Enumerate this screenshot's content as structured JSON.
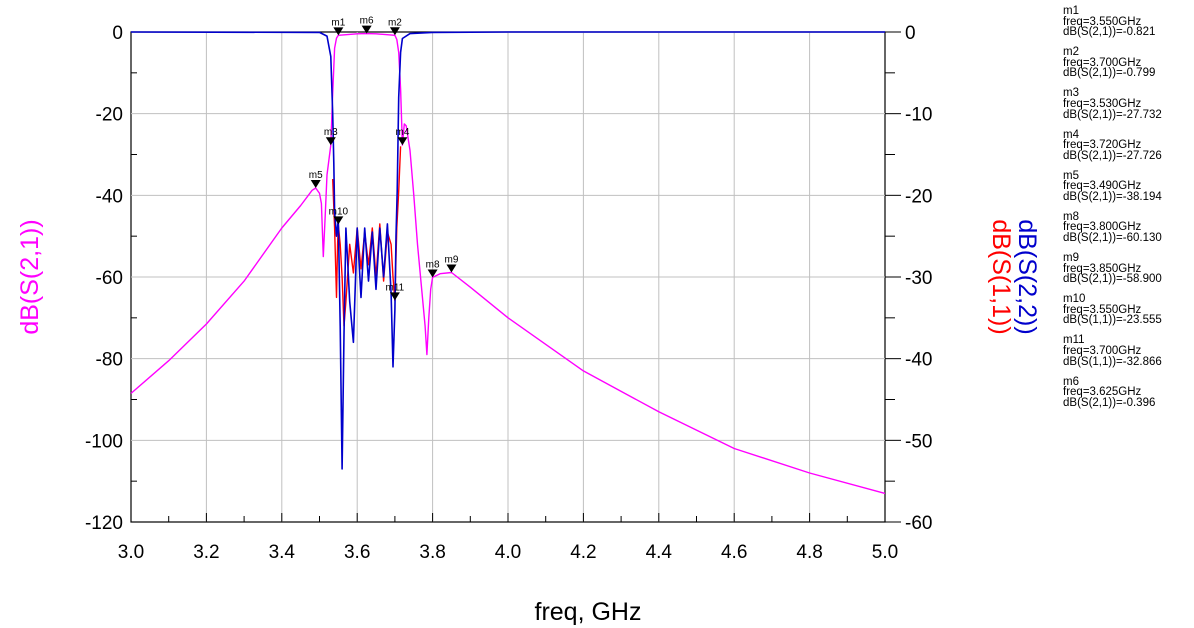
{
  "chart_data": {
    "type": "line",
    "xlabel": "freq, GHz",
    "ylabel_left": "dB(S(2,1))",
    "ylabel_right_top": "dB(S(2,2))",
    "ylabel_right_bottom": "dB(S(1,1))",
    "xlim": [
      3.0,
      5.0
    ],
    "ylim_left": [
      -120,
      0
    ],
    "ylim_right": [
      -60,
      0
    ],
    "x_ticks": [
      "3.0",
      "3.2",
      "3.4",
      "3.6",
      "3.8",
      "4.0",
      "4.2",
      "4.4",
      "4.6",
      "4.8",
      "5.0"
    ],
    "y_left_ticks": [
      "0",
      "-20",
      "-40",
      "-60",
      "-80",
      "-100",
      "-120"
    ],
    "y_right_ticks": [
      "0",
      "-10",
      "-20",
      "-30",
      "-40",
      "-50",
      "-60"
    ],
    "grid": true,
    "colors": {
      "s21": "#ff00ff",
      "s11": "#ff0000",
      "s22": "#0000cc"
    },
    "series": [
      {
        "key": "s21",
        "axis": "left",
        "x": [
          3.0,
          3.1,
          3.2,
          3.3,
          3.4,
          3.45,
          3.48,
          3.49,
          3.5,
          3.505,
          3.51,
          3.515,
          3.52,
          3.53,
          3.535,
          3.54,
          3.545,
          3.55,
          3.6,
          3.625,
          3.65,
          3.7,
          3.705,
          3.71,
          3.715,
          3.72,
          3.725,
          3.73,
          3.74,
          3.75,
          3.76,
          3.77,
          3.78,
          3.785,
          3.79,
          3.795,
          3.8,
          3.82,
          3.85,
          3.9,
          4.0,
          4.2,
          4.4,
          4.6,
          4.8,
          5.0
        ],
        "y": [
          -88.5,
          -80.5,
          -71.5,
          -61,
          -48,
          -42.5,
          -38.8,
          -38.2,
          -39.5,
          -42,
          -55,
          -45,
          -35,
          -27.7,
          -15,
          -4,
          -1.5,
          -0.8,
          -0.45,
          -0.4,
          -0.45,
          -0.8,
          -1.8,
          -5,
          -14,
          -27.7,
          -22.5,
          -23,
          -29,
          -40,
          -52,
          -62,
          -72,
          -79,
          -70,
          -63,
          -60.1,
          -59.2,
          -58.9,
          -62.5,
          -70,
          -83,
          -93,
          -102,
          -108,
          -113
        ]
      },
      {
        "key": "s11",
        "axis": "right",
        "x": [
          3.535,
          3.54,
          3.545,
          3.548,
          3.55,
          3.555,
          3.56,
          3.565,
          3.57,
          3.58,
          3.59,
          3.6,
          3.61,
          3.62,
          3.63,
          3.64,
          3.65,
          3.66,
          3.67,
          3.68,
          3.69,
          3.695,
          3.7,
          3.705,
          3.71,
          3.715
        ],
        "y": [
          -18,
          -24,
          -32.5,
          -26,
          -23.6,
          -26,
          -30,
          -36,
          -33,
          -26,
          -29.5,
          -24,
          -29,
          -24.5,
          -28.5,
          -24,
          -30,
          -23.5,
          -30.5,
          -24.5,
          -26,
          -30,
          -32.9,
          -24,
          -19.5,
          -14
        ]
      },
      {
        "key": "s22",
        "axis": "right",
        "x": [
          3.0,
          3.5,
          3.52,
          3.53,
          3.535,
          3.538,
          3.54,
          3.545,
          3.55,
          3.555,
          3.56,
          3.565,
          3.57,
          3.58,
          3.59,
          3.6,
          3.61,
          3.62,
          3.63,
          3.64,
          3.65,
          3.66,
          3.67,
          3.68,
          3.69,
          3.695,
          3.7,
          3.703,
          3.706,
          3.71,
          3.715,
          3.72,
          3.74,
          3.8,
          4.0,
          5.0
        ],
        "y": [
          0,
          -0.05,
          -0.5,
          -3,
          -10,
          -16,
          -22,
          -25,
          -23,
          -36,
          -53.5,
          -37,
          -24,
          -33,
          -38,
          -24,
          -32.5,
          -24,
          -30.5,
          -24.5,
          -31.5,
          -24,
          -30,
          -23.5,
          -32,
          -41,
          -34,
          -25,
          -19.5,
          -8,
          -2.5,
          -0.8,
          -0.2,
          -0.05,
          0,
          0
        ]
      }
    ],
    "markers": [
      {
        "id": "m1",
        "freq": 3.55,
        "series": "s21",
        "value": -0.821
      },
      {
        "id": "m2",
        "freq": 3.7,
        "series": "s21",
        "value": -0.799
      },
      {
        "id": "m3",
        "freq": 3.53,
        "series": "s21",
        "value": -27.732
      },
      {
        "id": "m4",
        "freq": 3.72,
        "series": "s21",
        "value": -27.726
      },
      {
        "id": "m5",
        "freq": 3.49,
        "series": "s21",
        "value": -38.194
      },
      {
        "id": "m8",
        "freq": 3.8,
        "series": "s21",
        "value": -60.13
      },
      {
        "id": "m9",
        "freq": 3.85,
        "series": "s21",
        "value": -58.9
      },
      {
        "id": "m10",
        "freq": 3.55,
        "series": "s11",
        "value": -23.555
      },
      {
        "id": "m11",
        "freq": 3.7,
        "series": "s11",
        "value": -32.866
      },
      {
        "id": "m6",
        "freq": 3.625,
        "series": "s21",
        "value": -0.396
      }
    ]
  },
  "marker_panel": [
    {
      "name": "m1",
      "freq_text": "freq=3.550GHz",
      "value_text": "dB(S(2,1))=-0.821"
    },
    {
      "name": "m2",
      "freq_text": "freq=3.700GHz",
      "value_text": "dB(S(2,1))=-0.799"
    },
    {
      "name": "m3",
      "freq_text": "freq=3.530GHz",
      "value_text": "dB(S(2,1))=-27.732"
    },
    {
      "name": "m4",
      "freq_text": "freq=3.720GHz",
      "value_text": "dB(S(2,1))=-27.726"
    },
    {
      "name": "m5",
      "freq_text": "freq=3.490GHz",
      "value_text": "dB(S(2,1))=-38.194"
    },
    {
      "name": "m8",
      "freq_text": "freq=3.800GHz",
      "value_text": "dB(S(2,1))=-60.130"
    },
    {
      "name": "m9",
      "freq_text": "freq=3.850GHz",
      "value_text": "dB(S(2,1))=-58.900"
    },
    {
      "name": "m10",
      "freq_text": "freq=3.550GHz",
      "value_text": "dB(S(1,1))=-23.555"
    },
    {
      "name": "m11",
      "freq_text": "freq=3.700GHz",
      "value_text": "dB(S(1,1))=-32.866"
    },
    {
      "name": "m6",
      "freq_text": "freq=3.625GHz",
      "value_text": "dB(S(2,1))=-0.396"
    }
  ]
}
